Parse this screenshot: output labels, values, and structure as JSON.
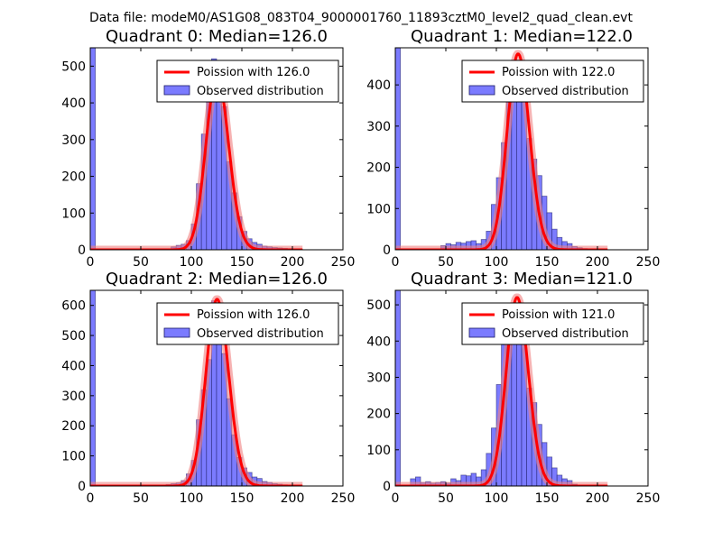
{
  "figure_title": "Data file: modeM0/AS1G08_083T04_9000001760_11893cztM0_level2_quad_clean.evt",
  "colors": {
    "poisson": "#ff0000",
    "poisson_band": "#f08080",
    "bars": "#7b7bff",
    "bar_edge": "#1a1a66"
  },
  "chart_data": [
    {
      "type": "bar",
      "title": "Quadrant 0: Median=126.0",
      "xlim": [
        0,
        250
      ],
      "ylim": [
        0,
        550
      ],
      "xticks": [
        0,
        50,
        100,
        150,
        200,
        250
      ],
      "yticks": [
        0,
        100,
        200,
        300,
        400,
        500
      ],
      "legend": {
        "location": "top-right",
        "line_label": "Poission with 126.0",
        "bar_label": "Observed distribution"
      },
      "poisson_mean": 126.0,
      "poisson_peak": 475,
      "bin_width": 5,
      "bins_start": [
        0,
        80,
        85,
        90,
        95,
        100,
        105,
        110,
        115,
        120,
        125,
        130,
        135,
        140,
        145,
        150,
        155,
        160,
        165,
        170,
        175,
        180,
        185,
        190,
        195,
        200,
        205
      ],
      "counts": [
        550,
        8,
        12,
        15,
        25,
        70,
        180,
        315,
        460,
        520,
        490,
        390,
        240,
        155,
        90,
        50,
        30,
        20,
        15,
        10,
        8,
        6,
        5,
        4,
        3,
        2,
        1
      ]
    },
    {
      "type": "bar",
      "title": "Quadrant 1: Median=122.0",
      "xlim": [
        0,
        250
      ],
      "ylim": [
        0,
        490
      ],
      "xticks": [
        0,
        50,
        100,
        150,
        200,
        250
      ],
      "yticks": [
        0,
        100,
        200,
        300,
        400
      ],
      "legend": {
        "location": "top-right",
        "line_label": "Poission with 122.0",
        "bar_label": "Observed distribution"
      },
      "poisson_mean": 122.0,
      "poisson_peak": 475,
      "bin_width": 5,
      "bins_start": [
        0,
        45,
        50,
        55,
        60,
        65,
        70,
        75,
        80,
        85,
        90,
        95,
        100,
        105,
        110,
        115,
        120,
        125,
        130,
        135,
        140,
        145,
        150,
        155,
        160,
        165,
        170,
        175,
        180,
        185,
        190
      ],
      "counts": [
        490,
        10,
        15,
        12,
        18,
        16,
        20,
        22,
        15,
        25,
        45,
        110,
        175,
        260,
        400,
        460,
        420,
        360,
        270,
        220,
        180,
        130,
        90,
        50,
        30,
        20,
        15,
        8,
        5,
        3,
        2
      ]
    },
    {
      "type": "bar",
      "title": "Quadrant 2: Median=126.0",
      "xlim": [
        0,
        250
      ],
      "ylim": [
        0,
        650
      ],
      "xticks": [
        0,
        50,
        100,
        150,
        200,
        250
      ],
      "yticks": [
        0,
        100,
        200,
        300,
        400,
        500,
        600
      ],
      "legend": {
        "location": "top-right",
        "line_label": "Poission with 126.0",
        "bar_label": "Observed distribution"
      },
      "poisson_mean": 126.0,
      "poisson_peak": 620,
      "bin_width": 5,
      "bins_start": [
        0,
        75,
        80,
        85,
        90,
        95,
        100,
        105,
        110,
        115,
        120,
        125,
        130,
        135,
        140,
        145,
        150,
        155,
        160,
        165,
        170,
        175,
        180,
        185,
        190,
        195,
        200
      ],
      "counts": [
        650,
        5,
        8,
        10,
        18,
        40,
        85,
        220,
        320,
        420,
        615,
        560,
        440,
        290,
        170,
        95,
        60,
        45,
        30,
        25,
        15,
        12,
        8,
        6,
        4,
        3,
        2
      ]
    },
    {
      "type": "bar",
      "title": "Quadrant 3: Median=121.0",
      "xlim": [
        0,
        250
      ],
      "ylim": [
        0,
        540
      ],
      "xticks": [
        0,
        50,
        100,
        150,
        200,
        250
      ],
      "yticks": [
        0,
        100,
        200,
        300,
        400,
        500
      ],
      "legend": {
        "location": "top-right",
        "line_label": "Poission with 121.0",
        "bar_label": "Observed distribution"
      },
      "poisson_mean": 121.0,
      "poisson_peak": 520,
      "bin_width": 5,
      "bins_start": [
        0,
        15,
        20,
        25,
        30,
        35,
        40,
        45,
        50,
        55,
        60,
        65,
        70,
        75,
        80,
        85,
        90,
        95,
        100,
        105,
        110,
        115,
        120,
        125,
        130,
        135,
        140,
        145,
        150,
        155,
        160,
        165,
        170,
        175
      ],
      "counts": [
        540,
        20,
        25,
        10,
        12,
        8,
        10,
        12,
        8,
        20,
        15,
        30,
        28,
        35,
        25,
        45,
        90,
        160,
        280,
        390,
        460,
        500,
        440,
        390,
        270,
        230,
        170,
        120,
        80,
        50,
        30,
        20,
        15,
        5
      ]
    }
  ]
}
